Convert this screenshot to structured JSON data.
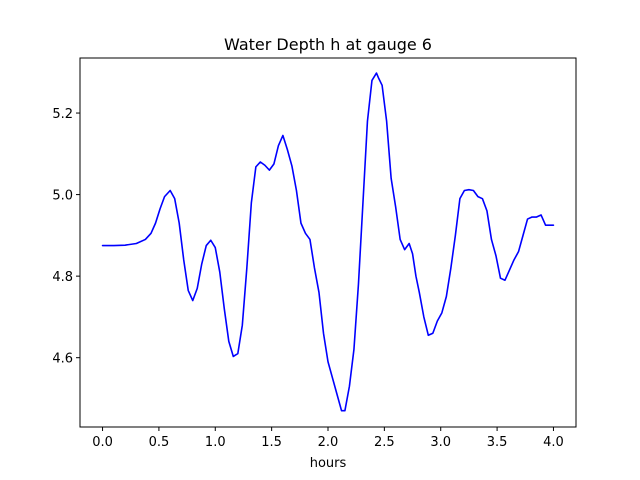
{
  "chart_data": {
    "type": "line",
    "title": "Water Depth h at gauge 6",
    "xlabel": "hours",
    "ylabel": "",
    "xlim": [
      -0.2,
      4.2
    ],
    "ylim": [
      4.43,
      5.335
    ],
    "x_ticks": [
      0.0,
      0.5,
      1.0,
      1.5,
      2.0,
      2.5,
      3.0,
      3.5,
      4.0
    ],
    "x_tick_labels": [
      "0.0",
      "0.5",
      "1.0",
      "1.5",
      "2.0",
      "2.5",
      "3.0",
      "3.5",
      "4.0"
    ],
    "y_ticks": [
      4.6,
      4.8,
      5.0,
      5.2
    ],
    "y_tick_labels": [
      "4.6",
      "4.8",
      "5.0",
      "5.2"
    ],
    "grid": false,
    "legend": "none",
    "series": [
      {
        "color": "#0000ff",
        "x": [
          0.0,
          0.1,
          0.2,
          0.3,
          0.38,
          0.43,
          0.47,
          0.51,
          0.55,
          0.6,
          0.64,
          0.68,
          0.72,
          0.76,
          0.8,
          0.84,
          0.88,
          0.92,
          0.96,
          1.0,
          1.04,
          1.08,
          1.12,
          1.16,
          1.2,
          1.24,
          1.28,
          1.32,
          1.36,
          1.4,
          1.44,
          1.48,
          1.52,
          1.56,
          1.6,
          1.64,
          1.68,
          1.72,
          1.76,
          1.8,
          1.84,
          1.88,
          1.92,
          1.96,
          2.0,
          2.04,
          2.08,
          2.12,
          2.15,
          2.19,
          2.23,
          2.27,
          2.31,
          2.35,
          2.39,
          2.43,
          2.45,
          2.48,
          2.52,
          2.56,
          2.6,
          2.64,
          2.68,
          2.72,
          2.75,
          2.78,
          2.81,
          2.85,
          2.89,
          2.93,
          2.97,
          3.01,
          3.05,
          3.09,
          3.13,
          3.17,
          3.21,
          3.25,
          3.29,
          3.33,
          3.37,
          3.41,
          3.45,
          3.49,
          3.53,
          3.57,
          3.61,
          3.65,
          3.69,
          3.73,
          3.77,
          3.81,
          3.85,
          3.89,
          3.93,
          3.97,
          4.0
        ],
        "y": [
          4.875,
          4.875,
          4.876,
          4.88,
          4.89,
          4.905,
          4.93,
          4.965,
          4.995,
          5.01,
          4.99,
          4.93,
          4.84,
          4.765,
          4.74,
          4.77,
          4.83,
          4.875,
          4.888,
          4.87,
          4.81,
          4.72,
          4.64,
          4.603,
          4.61,
          4.68,
          4.82,
          4.98,
          5.068,
          5.08,
          5.072,
          5.06,
          5.075,
          5.12,
          5.145,
          5.11,
          5.07,
          5.01,
          4.93,
          4.905,
          4.89,
          4.82,
          4.76,
          4.66,
          4.59,
          4.55,
          4.51,
          4.47,
          4.47,
          4.53,
          4.62,
          4.78,
          4.98,
          5.18,
          5.28,
          5.298,
          5.285,
          5.268,
          5.18,
          5.04,
          4.97,
          4.89,
          4.865,
          4.88,
          4.855,
          4.8,
          4.76,
          4.7,
          4.655,
          4.66,
          4.69,
          4.71,
          4.75,
          4.82,
          4.9,
          4.99,
          5.01,
          5.012,
          5.01,
          4.995,
          4.99,
          4.96,
          4.89,
          4.85,
          4.795,
          4.79,
          4.815,
          4.84,
          4.86,
          4.9,
          4.94,
          4.945,
          4.945,
          4.95,
          4.925,
          4.925,
          4.925
        ]
      }
    ]
  }
}
